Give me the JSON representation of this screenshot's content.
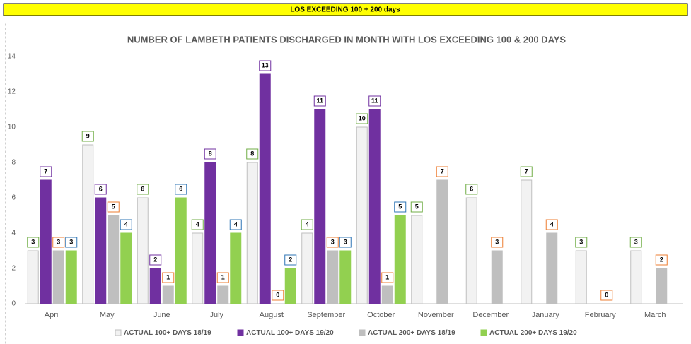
{
  "banner": "LOS EXCEEDING 100 + 200 days",
  "chart_data": {
    "type": "bar",
    "title": "NUMBER OF LAMBETH PATIENTS DISCHARGED IN MONTH WITH LOS EXCEEDING 100 & 200 DAYS",
    "categories": [
      "April",
      "May",
      "June",
      "July",
      "August",
      "September",
      "October",
      "November",
      "December",
      "January",
      "February",
      "March"
    ],
    "series": [
      {
        "name": "ACTUAL 100+ DAYS 18/19",
        "color": "#f2f2f2",
        "stroke": "#bfbfbf",
        "label_border": "#70ad47",
        "values": [
          3,
          9,
          6,
          4,
          8,
          4,
          10,
          5,
          6,
          7,
          3,
          3
        ]
      },
      {
        "name": "ACTUAL 100+ DAYS 19/20",
        "color": "#7030a0",
        "stroke": "#7030a0",
        "label_border": "#7030a0",
        "values": [
          7,
          6,
          2,
          8,
          13,
          11,
          11,
          null,
          null,
          null,
          null,
          null
        ]
      },
      {
        "name": "ACTUAL 200+ DAYS 18/19",
        "color": "#bfbfbf",
        "stroke": "#bfbfbf",
        "label_border": "#ed7d31",
        "values": [
          3,
          5,
          1,
          1,
          0,
          3,
          1,
          7,
          3,
          4,
          0,
          2
        ]
      },
      {
        "name": "ACTUAL 200+ DAYS 19/20",
        "color": "#92d050",
        "stroke": "#92d050",
        "label_border": "#2e75b6",
        "values": [
          3,
          4,
          6,
          4,
          2,
          3,
          5,
          null,
          null,
          null,
          null,
          null
        ]
      }
    ],
    "ylim": [
      0,
      14
    ],
    "yticks": [
      0,
      2,
      4,
      6,
      8,
      10,
      12,
      14
    ],
    "grid": false,
    "legend": "bottom"
  }
}
